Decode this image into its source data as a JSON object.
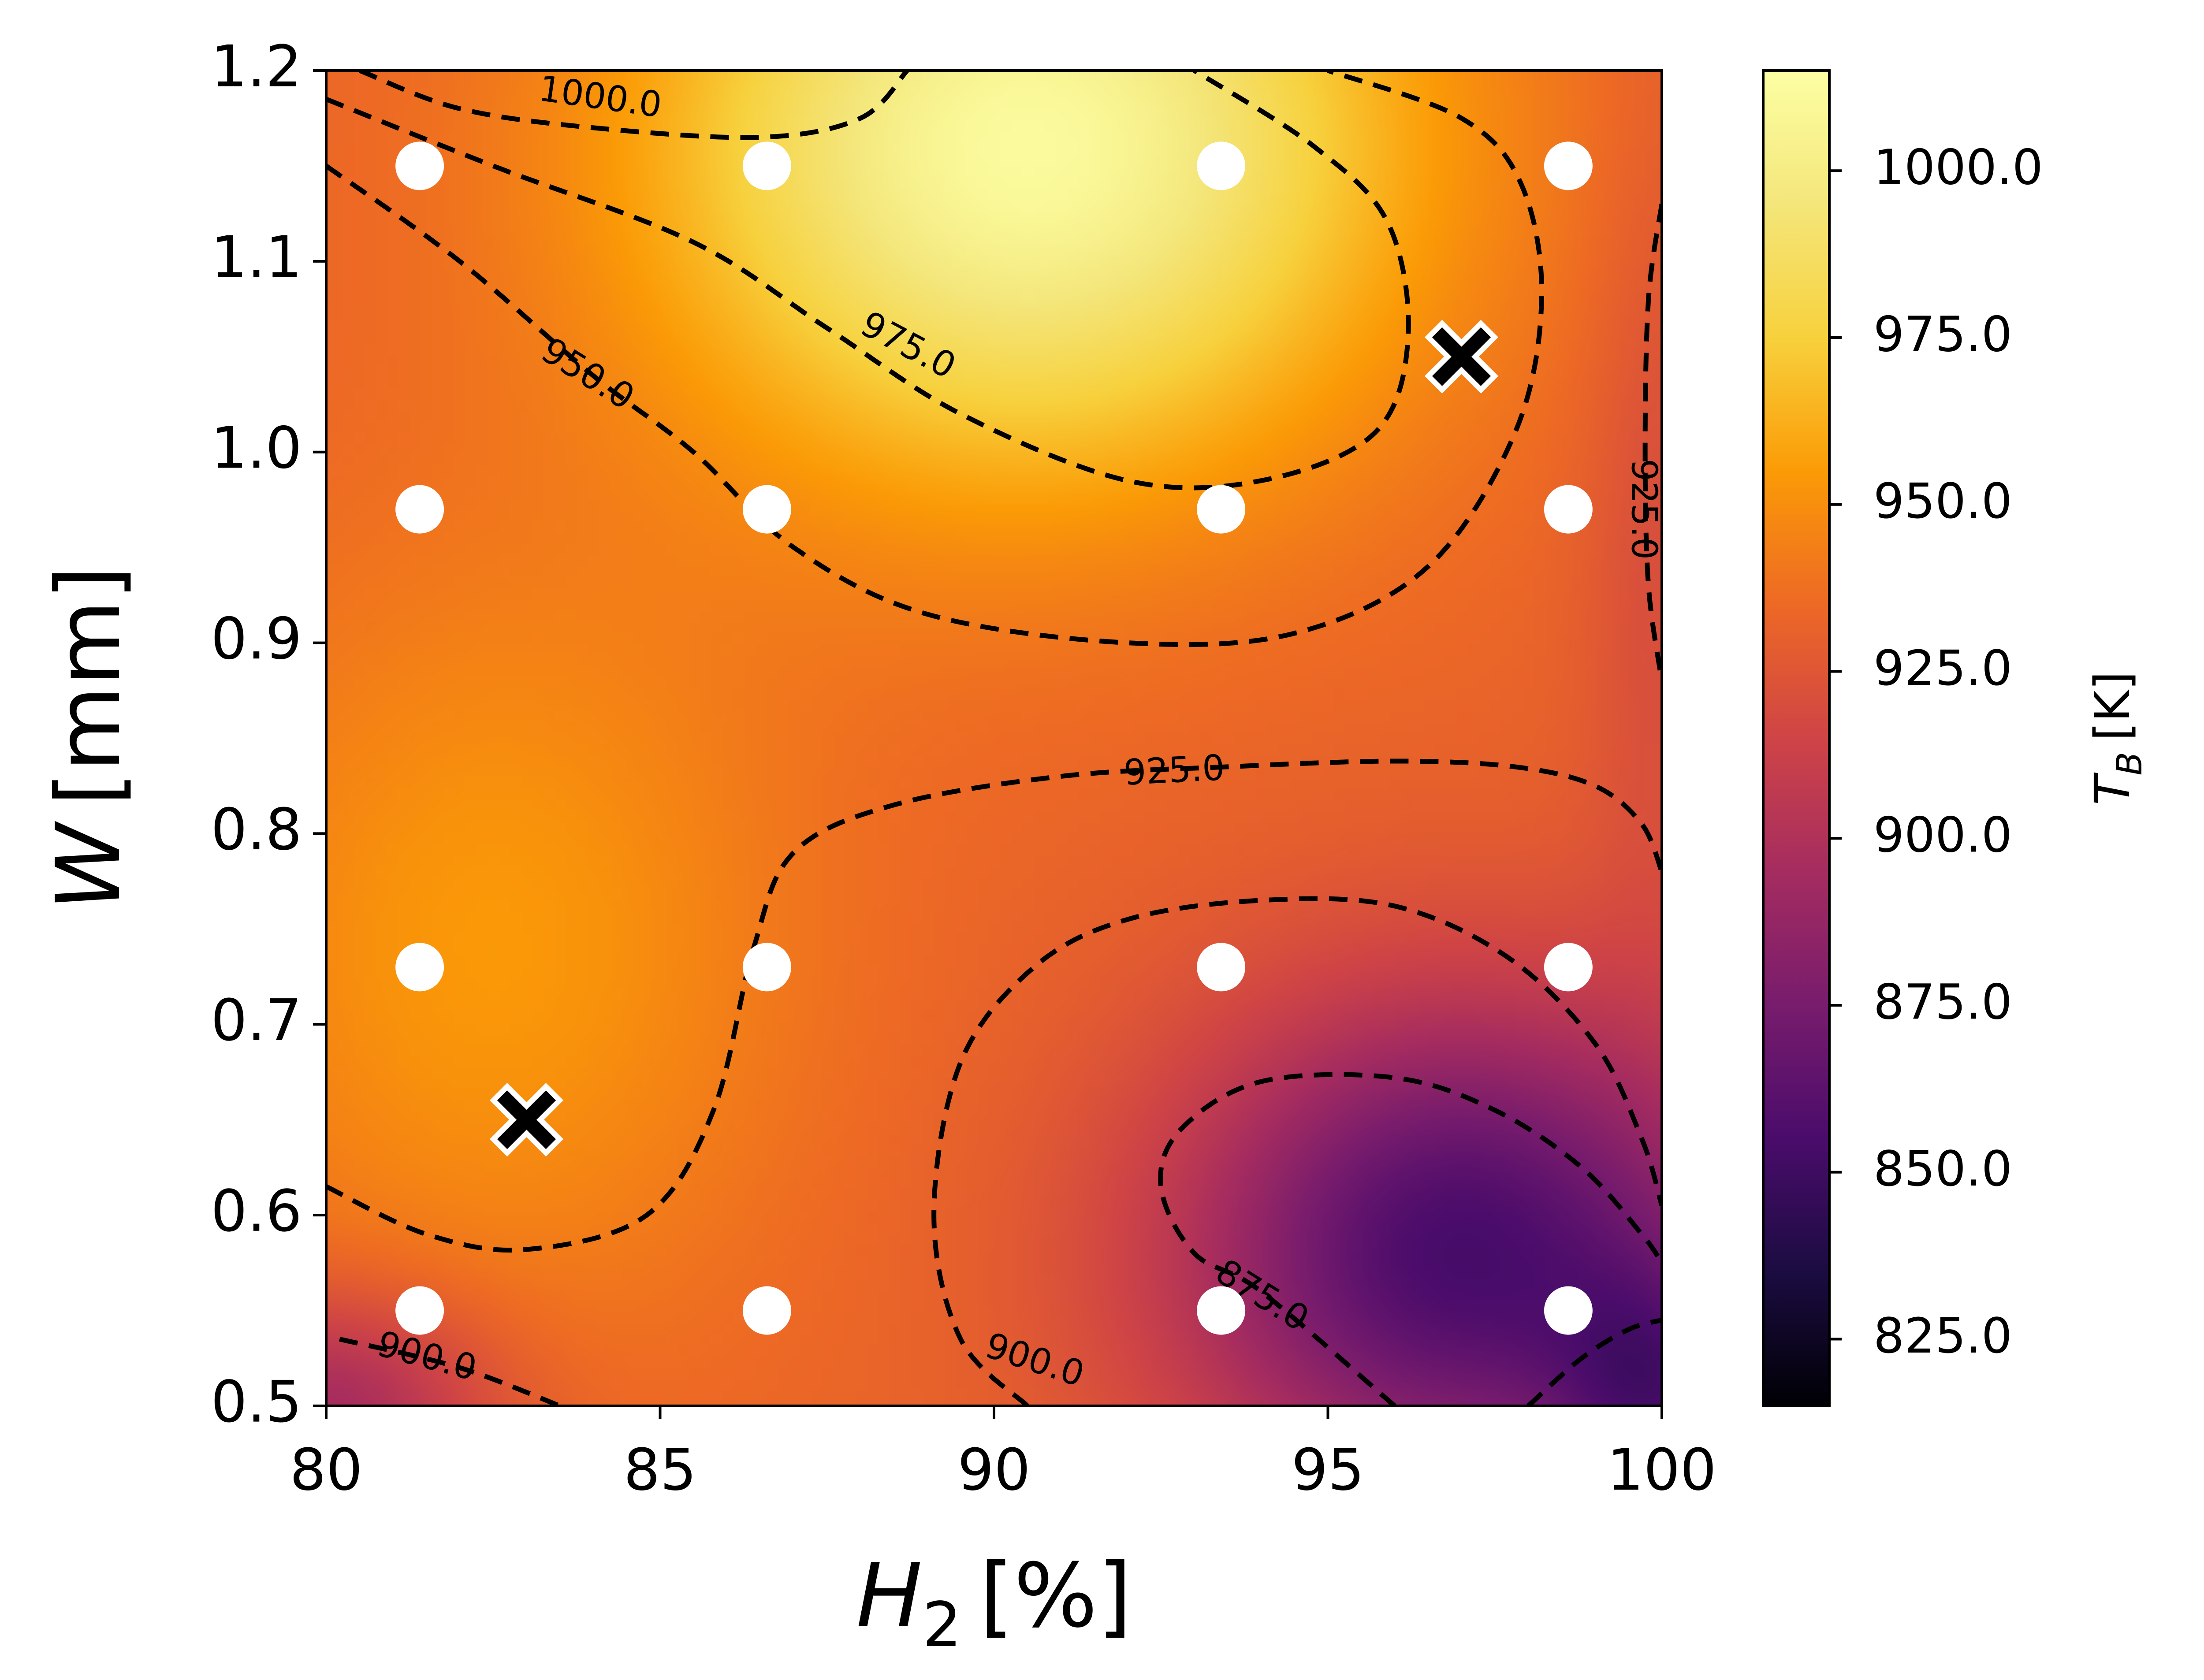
{
  "chart_data": {
    "type": "heatmap",
    "xlabel_base": "H",
    "xlabel_sub": "2",
    "xlabel_unit": "[%]",
    "ylabel_base": "W",
    "ylabel_unit": "[mm]",
    "colorbar_label_base": "T",
    "colorbar_label_sub": "B",
    "colorbar_label_unit": "[K]",
    "xlim": [
      80,
      100
    ],
    "ylim": [
      0.5,
      1.2
    ],
    "clim": [
      815,
      1015
    ],
    "colormap": "inferno",
    "x_ticks": [
      {
        "value": 80,
        "label": "80"
      },
      {
        "value": 85,
        "label": "85"
      },
      {
        "value": 90,
        "label": "90"
      },
      {
        "value": 95,
        "label": "95"
      },
      {
        "value": 100,
        "label": "100"
      }
    ],
    "y_ticks": [
      {
        "value": 0.5,
        "label": "0.5"
      },
      {
        "value": 0.6,
        "label": "0.6"
      },
      {
        "value": 0.7,
        "label": "0.7"
      },
      {
        "value": 0.8,
        "label": "0.8"
      },
      {
        "value": 0.9,
        "label": "0.9"
      },
      {
        "value": 1.0,
        "label": "1.0"
      },
      {
        "value": 1.1,
        "label": "1.1"
      },
      {
        "value": 1.2,
        "label": "1.2"
      }
    ],
    "colorbar_ticks": [
      {
        "value": 825,
        "label": "825.0"
      },
      {
        "value": 850,
        "label": "850.0"
      },
      {
        "value": 875,
        "label": "875.0"
      },
      {
        "value": 900,
        "label": "900.0"
      },
      {
        "value": 925,
        "label": "925.0"
      },
      {
        "value": 950,
        "label": "950.0"
      },
      {
        "value": 975,
        "label": "975.0"
      },
      {
        "value": 1000,
        "label": "1000.0"
      }
    ],
    "sample_points": [
      [
        81.4,
        1.15
      ],
      [
        86.6,
        1.15
      ],
      [
        93.4,
        1.15
      ],
      [
        98.6,
        1.15
      ],
      [
        81.4,
        0.97
      ],
      [
        86.6,
        0.97
      ],
      [
        93.4,
        0.97
      ],
      [
        98.6,
        0.97
      ],
      [
        81.4,
        0.73
      ],
      [
        86.6,
        0.73
      ],
      [
        93.4,
        0.73
      ],
      [
        98.6,
        0.73
      ],
      [
        81.4,
        0.55
      ],
      [
        86.6,
        0.55
      ],
      [
        93.4,
        0.55
      ],
      [
        98.6,
        0.55
      ]
    ],
    "markers_x": [
      [
        97.0,
        1.05
      ],
      [
        83.0,
        0.65
      ]
    ],
    "contours": [
      {
        "level": "1000.0",
        "points": [
          [
            80.5,
            1.2
          ],
          [
            82.0,
            1.18
          ],
          [
            84.0,
            1.17
          ],
          [
            86.5,
            1.165
          ],
          [
            88.0,
            1.175
          ],
          [
            88.7,
            1.2
          ]
        ]
      },
      {
        "level": "975.0",
        "points": [
          [
            80.0,
            1.185
          ],
          [
            82.5,
            1.15
          ],
          [
            85.5,
            1.11
          ],
          [
            87.5,
            1.065
          ],
          [
            89.5,
            1.02
          ],
          [
            92.0,
            0.985
          ],
          [
            94.0,
            0.985
          ],
          [
            95.7,
            1.01
          ],
          [
            96.2,
            1.06
          ],
          [
            95.9,
            1.12
          ],
          [
            94.8,
            1.16
          ],
          [
            93.0,
            1.2
          ]
        ]
      },
      {
        "level": "950.0",
        "points": [
          [
            80.0,
            1.15
          ],
          [
            82.0,
            1.1
          ],
          [
            84.0,
            1.04
          ],
          [
            85.5,
            1.0
          ],
          [
            87.0,
            0.95
          ],
          [
            89.0,
            0.915
          ],
          [
            92.0,
            0.9
          ],
          [
            94.5,
            0.905
          ],
          [
            96.5,
            0.94
          ],
          [
            97.8,
            1.01
          ],
          [
            98.2,
            1.08
          ],
          [
            97.9,
            1.14
          ],
          [
            97.0,
            1.175
          ],
          [
            95.0,
            1.2
          ]
        ]
      },
      {
        "level": "925.0",
        "points": [
          [
            80.0,
            0.615
          ],
          [
            81.5,
            0.59
          ],
          [
            83.0,
            0.582
          ],
          [
            84.8,
            0.6
          ],
          [
            85.8,
            0.655
          ],
          [
            86.4,
            0.74
          ],
          [
            87.0,
            0.79
          ],
          [
            88.5,
            0.815
          ],
          [
            91.0,
            0.83
          ],
          [
            93.5,
            0.835
          ],
          [
            96.0,
            0.838
          ],
          [
            97.8,
            0.835
          ],
          [
            99.0,
            0.825
          ],
          [
            99.7,
            0.805
          ],
          [
            100.0,
            0.78
          ]
        ]
      },
      {
        "level": "925.0",
        "points": [
          [
            100.0,
            1.13
          ],
          [
            99.8,
            1.08
          ],
          [
            99.75,
            1.0
          ],
          [
            99.8,
            0.93
          ],
          [
            100.0,
            0.88
          ]
        ]
      },
      {
        "level": "900.0",
        "points": [
          [
            80.2,
            0.535
          ],
          [
            82.0,
            0.52
          ],
          [
            83.5,
            0.5
          ]
        ]
      },
      {
        "level": "900.0",
        "points": [
          [
            90.5,
            0.5
          ],
          [
            89.5,
            0.535
          ],
          [
            89.1,
            0.6
          ],
          [
            89.5,
            0.68
          ],
          [
            90.6,
            0.73
          ],
          [
            92.0,
            0.755
          ],
          [
            94.0,
            0.765
          ],
          [
            96.0,
            0.762
          ],
          [
            97.7,
            0.735
          ],
          [
            99.0,
            0.69
          ],
          [
            99.7,
            0.64
          ],
          [
            100.0,
            0.605
          ]
        ]
      },
      {
        "level": "875.0",
        "points": [
          [
            96.0,
            0.5
          ],
          [
            94.0,
            0.56
          ],
          [
            93.0,
            0.58
          ],
          [
            92.5,
            0.615
          ],
          [
            92.8,
            0.645
          ],
          [
            94.0,
            0.67
          ],
          [
            96.0,
            0.672
          ],
          [
            97.5,
            0.655
          ],
          [
            98.8,
            0.625
          ],
          [
            99.7,
            0.59
          ],
          [
            100.0,
            0.575
          ]
        ]
      },
      {
        "level": "850.0",
        "points": [
          [
            98.0,
            0.5
          ],
          [
            98.8,
            0.525
          ],
          [
            99.5,
            0.54
          ],
          [
            100.0,
            0.545
          ]
        ]
      }
    ],
    "contour_labels": [
      {
        "text": "1000.0",
        "x": 84.1,
        "y": 1.185,
        "angle": 8
      },
      {
        "text": "975.0",
        "x": 88.7,
        "y": 1.055,
        "angle": 28
      },
      {
        "text": "950.0",
        "x": 83.9,
        "y": 1.04,
        "angle": 32
      },
      {
        "text": "925.0",
        "x": 92.7,
        "y": 0.832,
        "angle": -3
      },
      {
        "text": "925.0",
        "x": 99.7,
        "y": 0.97,
        "angle": 90
      },
      {
        "text": "900.0",
        "x": 81.5,
        "y": 0.525,
        "angle": 15
      },
      {
        "text": "900.0",
        "x": 90.6,
        "y": 0.523,
        "angle": 18
      },
      {
        "text": "875.0",
        "x": 94.0,
        "y": 0.557,
        "angle": 32
      }
    ]
  }
}
